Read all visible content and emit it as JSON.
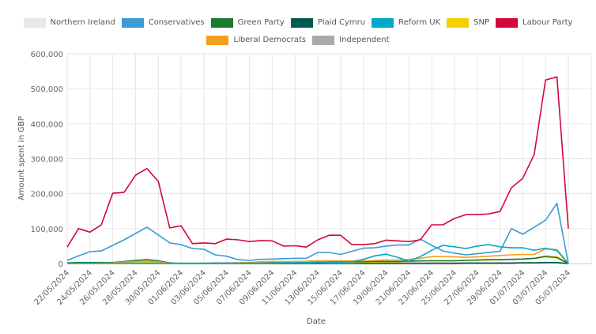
{
  "chart_data": {
    "type": "line",
    "title": "",
    "xlabel": "Date",
    "ylabel": "Amount spent in GBP",
    "ylim": [
      0,
      600000
    ],
    "yticks": [
      "0",
      "100,000",
      "200,000",
      "300,000",
      "400,000",
      "500,000",
      "600,000"
    ],
    "yticks_values": [
      0,
      100000,
      200000,
      300000,
      400000,
      500000,
      600000
    ],
    "grid": true,
    "legend_position": "top",
    "x": [
      "22/05/2024",
      "23/05/2024",
      "24/05/2024",
      "25/05/2024",
      "26/05/2024",
      "27/05/2024",
      "28/05/2024",
      "29/05/2024",
      "30/05/2024",
      "31/05/2024",
      "01/06/2024",
      "02/06/2024",
      "03/06/2024",
      "04/06/2024",
      "05/06/2024",
      "06/06/2024",
      "07/06/2024",
      "08/06/2024",
      "09/06/2024",
      "10/06/2024",
      "11/06/2024",
      "12/06/2024",
      "13/06/2024",
      "14/06/2024",
      "15/06/2024",
      "16/06/2024",
      "17/06/2024",
      "18/06/2024",
      "19/06/2024",
      "20/06/2024",
      "21/06/2024",
      "22/06/2024",
      "23/06/2024",
      "24/06/2024",
      "25/06/2024",
      "26/06/2024",
      "27/06/2024",
      "28/06/2024",
      "29/06/2024",
      "30/06/2024",
      "01/07/2024",
      "02/07/2024",
      "03/07/2024",
      "04/07/2024",
      "05/07/2024"
    ],
    "xtick_labels": [
      "22/05/2024",
      "24/05/2024",
      "26/05/2024",
      "28/05/2024",
      "30/05/2024",
      "01/06/2024",
      "03/06/2024",
      "05/06/2024",
      "07/06/2024",
      "09/06/2024",
      "11/06/2024",
      "13/06/2024",
      "15/06/2024",
      "17/06/2024",
      "19/06/2024",
      "21/06/2024",
      "23/06/2024",
      "25/06/2024",
      "27/06/2024",
      "29/06/2024",
      "01/07/2024",
      "03/07/2024",
      "05/07/2024"
    ],
    "series": [
      {
        "name": "Northern Ireland",
        "color": "#e8e8e8",
        "values": [
          0,
          0,
          0,
          0,
          0,
          0,
          0,
          0,
          0,
          0,
          0,
          0,
          0,
          0,
          0,
          0,
          0,
          0,
          0,
          0,
          0,
          0,
          0,
          0,
          0,
          0,
          0,
          0,
          0,
          0,
          0,
          0,
          0,
          0,
          0,
          0,
          0,
          0,
          0,
          0,
          0,
          0,
          0,
          0,
          0
        ]
      },
      {
        "name": "Independent",
        "color": "#aaaaaa",
        "values": [
          0,
          0,
          0,
          0,
          0,
          0,
          0,
          0,
          0,
          0,
          0,
          0,
          1000,
          2000,
          2000,
          2000,
          3000,
          3000,
          3000,
          2000,
          2000,
          2000,
          2000,
          2000,
          2000,
          2000,
          2000,
          2000,
          2000,
          2000,
          2000,
          2000,
          2000,
          2000,
          2000,
          2000,
          2000,
          2000,
          2000,
          2000,
          2000,
          2000,
          2000,
          2000,
          0
        ]
      },
      {
        "name": "Plaid Cymru",
        "color": "#005b4f",
        "values": [
          1000,
          1000,
          1000,
          1000,
          1000,
          1000,
          1000,
          1000,
          1000,
          0,
          0,
          0,
          0,
          0,
          0,
          0,
          0,
          0,
          0,
          0,
          0,
          0,
          0,
          0,
          0,
          0,
          0,
          0,
          0,
          0,
          0,
          0,
          0,
          0,
          0,
          1000,
          1000,
          1000,
          1000,
          1000,
          2000,
          2000,
          3000,
          3000,
          0
        ]
      },
      {
        "name": "SNP",
        "color": "#f5d000",
        "values": [
          0,
          0,
          0,
          0,
          0,
          1000,
          2000,
          3000,
          2000,
          0,
          0,
          0,
          0,
          0,
          0,
          1000,
          1000,
          2000,
          2000,
          2000,
          2000,
          2000,
          3000,
          3000,
          3000,
          3000,
          4000,
          4000,
          5000,
          5000,
          6000,
          7000,
          8000,
          8000,
          8000,
          9000,
          10000,
          10000,
          11000,
          12000,
          13000,
          15000,
          22000,
          20000,
          0
        ]
      },
      {
        "name": "Green Party",
        "color": "#1b7a2e",
        "values": [
          2000,
          3000,
          3000,
          3000,
          3000,
          6000,
          9000,
          11000,
          8000,
          2000,
          0,
          0,
          0,
          0,
          0,
          1000,
          1000,
          1000,
          2000,
          2000,
          2000,
          3000,
          4000,
          5000,
          5000,
          5000,
          5000,
          6000,
          6000,
          6000,
          7000,
          8000,
          8000,
          8000,
          8000,
          9000,
          10000,
          11000,
          11000,
          12000,
          13000,
          15000,
          20000,
          17000,
          0
        ]
      },
      {
        "name": "Liberal Democrats",
        "color": "#f2a01c",
        "values": [
          0,
          0,
          0,
          1000,
          2000,
          4000,
          6000,
          7000,
          5000,
          1000,
          0,
          0,
          0,
          0,
          0,
          2000,
          3000,
          5000,
          6000,
          6000,
          6000,
          7000,
          8000,
          8000,
          8000,
          8000,
          8000,
          9000,
          10000,
          10000,
          12000,
          15000,
          20000,
          20000,
          19000,
          18000,
          19000,
          21000,
          23000,
          25000,
          26000,
          26000,
          42000,
          40000,
          0
        ]
      },
      {
        "name": "Reform UK",
        "color": "#00a9c9",
        "values": [
          1000,
          1000,
          1000,
          1000,
          1000,
          1000,
          1000,
          1000,
          1000,
          1000,
          1000,
          1000,
          1000,
          1000,
          1000,
          1000,
          1000,
          1000,
          1000,
          2000,
          2000,
          2000,
          3000,
          4000,
          4000,
          5000,
          12000,
          22000,
          27000,
          18000,
          7000,
          20000,
          38000,
          52000,
          48000,
          43000,
          50000,
          54000,
          48000,
          45000,
          45000,
          38000,
          44000,
          37000,
          0
        ]
      },
      {
        "name": "Conservatives",
        "color": "#3a9bd6",
        "values": [
          9000,
          22000,
          34000,
          36000,
          52000,
          68000,
          86000,
          104000,
          82000,
          59000,
          54000,
          43000,
          41000,
          25000,
          21000,
          11000,
          9000,
          12000,
          13000,
          14000,
          15000,
          15000,
          32000,
          32000,
          26000,
          35000,
          44000,
          45000,
          50000,
          53000,
          53000,
          70000,
          52000,
          36000,
          30000,
          25000,
          28000,
          32000,
          35000,
          100000,
          84000,
          104000,
          124000,
          172000,
          0
        ]
      },
      {
        "name": "Labour Party",
        "color": "#d4083a",
        "values": [
          47000,
          100000,
          90000,
          111000,
          201000,
          204000,
          253000,
          272000,
          235000,
          102000,
          108000,
          57000,
          59000,
          57000,
          70000,
          68000,
          63000,
          66000,
          65000,
          50000,
          51000,
          47000,
          68000,
          81000,
          81000,
          54000,
          54000,
          57000,
          67000,
          65000,
          63000,
          68000,
          111000,
          111000,
          129000,
          140000,
          140000,
          142000,
          149000,
          217000,
          244000,
          312000,
          525000,
          534000,
          100000
        ]
      }
    ]
  },
  "legend": {
    "row1": [
      {
        "label": "Northern Ireland",
        "color": "#e8e8e8"
      },
      {
        "label": "Conservatives",
        "color": "#3a9bd6"
      },
      {
        "label": "Green Party",
        "color": "#1b7a2e"
      },
      {
        "label": "Plaid Cymru",
        "color": "#005b4f"
      },
      {
        "label": "Reform UK",
        "color": "#00a9c9"
      },
      {
        "label": "SNP",
        "color": "#f5d000"
      },
      {
        "label": "Labour Party",
        "color": "#d4083a"
      }
    ],
    "row2": [
      {
        "label": "Liberal Democrats",
        "color": "#f2a01c"
      },
      {
        "label": "Independent",
        "color": "#aaaaaa"
      }
    ]
  }
}
